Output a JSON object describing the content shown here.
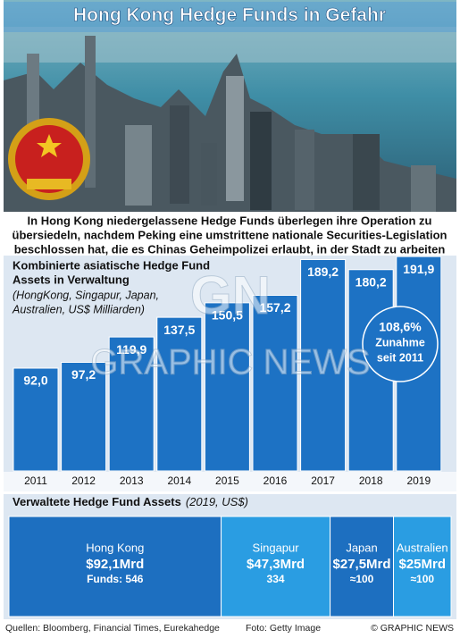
{
  "title": "Hong Kong Hedge Funds in Gefahr",
  "subtitle": [
    "In Hong Kong niedergelassene Hedge Funds überlegen ihre Operation zu",
    "übersiedeln, nachdem Peking eine umstrittene nationale Securities-Legislation",
    "beschlossen hat, die es Chinas Geheimpolizei erlaubt, in der Stadt zu arbeiten"
  ],
  "watermark": [
    "GN",
    "GRAPHIC NEWS"
  ],
  "chart_data": [
    {
      "type": "bar",
      "title": [
        "Kombinierte asiatische Hedge Fund",
        "Assets in Verwaltung"
      ],
      "subtitle": [
        "(HongKong, Singapur, Japan,",
        "Australien, US$ Milliarden)"
      ],
      "categories": [
        "2011",
        "2012",
        "2013",
        "2014",
        "2015",
        "2016",
        "2017",
        "2018",
        "2019"
      ],
      "values": [
        92.0,
        97.2,
        119.9,
        137.5,
        150.5,
        157.2,
        189.2,
        180.2,
        191.9
      ],
      "value_labels": [
        "92,0",
        "97,2",
        "119,9",
        "137,5",
        "150,5",
        "157,2",
        "189,2",
        "180,2",
        "191,9"
      ],
      "color": "#1d72c4",
      "ylim": [
        0,
        200
      ],
      "annotation": [
        "108,6%",
        "Zunahme",
        "seit 2011"
      ]
    },
    {
      "type": "treemap",
      "title": "Verwaltete Hedge Fund Assets",
      "subtitle": "(2019, US$)",
      "categories": [
        "Hong Kong",
        "Singapur",
        "Japan",
        "Australien"
      ],
      "values": [
        92.1,
        47.3,
        27.5,
        25
      ],
      "value_labels": [
        "$92,1Mrd",
        "$47,3Mrd",
        "$27,5Mrd",
        "$25Mrd"
      ],
      "funds_labels": [
        "Funds: 546",
        "334",
        "≈100",
        "≈100"
      ],
      "colors": [
        "#1d6fc0",
        "#2a9de2",
        "#1d6fc0",
        "#2a9de2"
      ]
    }
  ],
  "footer": {
    "sources": "Quellen: Bloomberg, Financial Times, Eurekahedge",
    "photo": "Foto: Getty Image",
    "copyright": "© GRAPHIC NEWS"
  }
}
